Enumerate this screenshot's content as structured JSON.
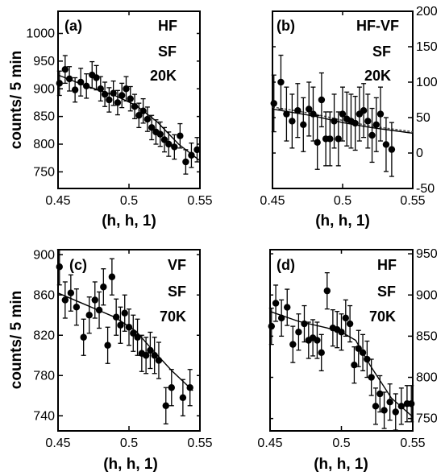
{
  "chart_data": [
    {
      "type": "scatter",
      "panel_label": "(a)",
      "annotations": [
        "HF",
        "SF",
        "20K"
      ],
      "xlabel": "(h, h, 1)",
      "ylabel": "counts/ 5 min",
      "y_axis_side": "left",
      "xlim": [
        0.45,
        0.55
      ],
      "ylim": [
        720,
        1040
      ],
      "xticks": [
        0.45,
        0.5,
        0.55
      ],
      "xtick_labels": [
        "0.45",
        "0.5",
        "0.55"
      ],
      "yticks": [
        750,
        800,
        850,
        900,
        950,
        1000
      ],
      "ytick_labels": [
        "750",
        "800",
        "850",
        "900",
        "950",
        "1000"
      ],
      "points": [
        {
          "x": 0.451,
          "y": 910,
          "err": 22
        },
        {
          "x": 0.455,
          "y": 935,
          "err": 25
        },
        {
          "x": 0.458,
          "y": 918,
          "err": 22
        },
        {
          "x": 0.462,
          "y": 898,
          "err": 22
        },
        {
          "x": 0.466,
          "y": 912,
          "err": 25
        },
        {
          "x": 0.47,
          "y": 905,
          "err": 22
        },
        {
          "x": 0.474,
          "y": 925,
          "err": 24
        },
        {
          "x": 0.477,
          "y": 920,
          "err": 22
        },
        {
          "x": 0.48,
          "y": 900,
          "err": 22
        },
        {
          "x": 0.483,
          "y": 890,
          "err": 22
        },
        {
          "x": 0.486,
          "y": 880,
          "err": 22
        },
        {
          "x": 0.489,
          "y": 892,
          "err": 22
        },
        {
          "x": 0.492,
          "y": 875,
          "err": 22
        },
        {
          "x": 0.495,
          "y": 888,
          "err": 22
        },
        {
          "x": 0.498,
          "y": 900,
          "err": 22
        },
        {
          "x": 0.501,
          "y": 882,
          "err": 22
        },
        {
          "x": 0.504,
          "y": 868,
          "err": 22
        },
        {
          "x": 0.507,
          "y": 852,
          "err": 22
        },
        {
          "x": 0.51,
          "y": 860,
          "err": 22
        },
        {
          "x": 0.513,
          "y": 845,
          "err": 22
        },
        {
          "x": 0.516,
          "y": 830,
          "err": 22
        },
        {
          "x": 0.519,
          "y": 822,
          "err": 22
        },
        {
          "x": 0.522,
          "y": 818,
          "err": 22
        },
        {
          "x": 0.525,
          "y": 808,
          "err": 22
        },
        {
          "x": 0.528,
          "y": 800,
          "err": 22
        },
        {
          "x": 0.532,
          "y": 795,
          "err": 22
        },
        {
          "x": 0.536,
          "y": 815,
          "err": 22
        },
        {
          "x": 0.54,
          "y": 768,
          "err": 22
        },
        {
          "x": 0.544,
          "y": 780,
          "err": 22
        },
        {
          "x": 0.548,
          "y": 790,
          "err": 22
        }
      ],
      "fit_lines": [
        {
          "style": "solid",
          "points": [
            [
              0.45,
              925
            ],
            [
              0.47,
              905
            ],
            [
              0.49,
              888
            ],
            [
              0.505,
              870
            ],
            [
              0.52,
              840
            ],
            [
              0.535,
              800
            ],
            [
              0.55,
              770
            ]
          ]
        }
      ]
    },
    {
      "type": "scatter",
      "panel_label": "(b)",
      "annotations": [
        "HF-VF",
        "SF",
        "20K"
      ],
      "xlabel": "(h, h, 1)",
      "ylabel": "",
      "y_axis_side": "right",
      "xlim": [
        0.45,
        0.55
      ],
      "ylim": [
        -50,
        200
      ],
      "xticks": [
        0.45,
        0.5,
        0.55
      ],
      "xtick_labels": [
        "0.45",
        "0.5",
        "0.55"
      ],
      "yticks": [
        -50,
        0,
        50,
        100,
        150,
        200
      ],
      "ytick_labels": [
        "-50",
        "0",
        "50",
        "100",
        "150",
        "200"
      ],
      "points": [
        {
          "x": 0.451,
          "y": 70,
          "err": 40
        },
        {
          "x": 0.456,
          "y": 100,
          "err": 38
        },
        {
          "x": 0.46,
          "y": 55,
          "err": 38
        },
        {
          "x": 0.464,
          "y": 45,
          "err": 38
        },
        {
          "x": 0.468,
          "y": 60,
          "err": 38
        },
        {
          "x": 0.472,
          "y": 40,
          "err": 38
        },
        {
          "x": 0.476,
          "y": 62,
          "err": 38
        },
        {
          "x": 0.479,
          "y": 55,
          "err": 38
        },
        {
          "x": 0.482,
          "y": 15,
          "err": 38
        },
        {
          "x": 0.485,
          "y": 75,
          "err": 38
        },
        {
          "x": 0.488,
          "y": 20,
          "err": 38
        },
        {
          "x": 0.491,
          "y": 20,
          "err": 38
        },
        {
          "x": 0.494,
          "y": 45,
          "err": 38
        },
        {
          "x": 0.497,
          "y": 20,
          "err": 38
        },
        {
          "x": 0.5,
          "y": 55,
          "err": 38
        },
        {
          "x": 0.503,
          "y": 48,
          "err": 38
        },
        {
          "x": 0.506,
          "y": 45,
          "err": 38
        },
        {
          "x": 0.509,
          "y": 42,
          "err": 38
        },
        {
          "x": 0.512,
          "y": 55,
          "err": 38
        },
        {
          "x": 0.515,
          "y": 60,
          "err": 38
        },
        {
          "x": 0.518,
          "y": 45,
          "err": 38
        },
        {
          "x": 0.521,
          "y": 25,
          "err": 38
        },
        {
          "x": 0.524,
          "y": 40,
          "err": 38
        },
        {
          "x": 0.527,
          "y": 55,
          "err": 38
        },
        {
          "x": 0.531,
          "y": 12,
          "err": 38
        },
        {
          "x": 0.535,
          "y": 5,
          "err": 38
        }
      ],
      "fit_lines": [
        {
          "style": "dashed",
          "points": [
            [
              0.45,
              65
            ],
            [
              0.48,
              55
            ],
            [
              0.5,
              46
            ],
            [
              0.52,
              38
            ],
            [
              0.55,
              30
            ]
          ]
        },
        {
          "style": "solid",
          "points": [
            [
              0.45,
              62
            ],
            [
              0.48,
              52
            ],
            [
              0.5,
              43
            ],
            [
              0.52,
              36
            ],
            [
              0.55,
              28
            ]
          ]
        }
      ]
    },
    {
      "type": "scatter",
      "panel_label": "(c)",
      "annotations": [
        "VF",
        "SF",
        "70K"
      ],
      "xlabel": "(h, h, 1)",
      "ylabel": "counts/ 5 min",
      "y_axis_side": "left",
      "xlim": [
        0.45,
        0.55
      ],
      "ylim": [
        725,
        905
      ],
      "xticks": [
        0.45,
        0.5,
        0.55
      ],
      "xtick_labels": [
        "0.45",
        "0.5",
        "0.55"
      ],
      "yticks": [
        740,
        780,
        820,
        860,
        900
      ],
      "ytick_labels": [
        "740",
        "780",
        "820",
        "860",
        "900"
      ],
      "points": [
        {
          "x": 0.451,
          "y": 888,
          "err": 18
        },
        {
          "x": 0.455,
          "y": 855,
          "err": 18
        },
        {
          "x": 0.459,
          "y": 862,
          "err": 18
        },
        {
          "x": 0.463,
          "y": 848,
          "err": 18
        },
        {
          "x": 0.468,
          "y": 818,
          "err": 18
        },
        {
          "x": 0.472,
          "y": 840,
          "err": 18
        },
        {
          "x": 0.476,
          "y": 855,
          "err": 18
        },
        {
          "x": 0.479,
          "y": 845,
          "err": 18
        },
        {
          "x": 0.482,
          "y": 868,
          "err": 18
        },
        {
          "x": 0.485,
          "y": 810,
          "err": 18
        },
        {
          "x": 0.488,
          "y": 878,
          "err": 18
        },
        {
          "x": 0.491,
          "y": 838,
          "err": 18
        },
        {
          "x": 0.494,
          "y": 830,
          "err": 18
        },
        {
          "x": 0.497,
          "y": 842,
          "err": 18
        },
        {
          "x": 0.5,
          "y": 828,
          "err": 18
        },
        {
          "x": 0.503,
          "y": 822,
          "err": 18
        },
        {
          "x": 0.506,
          "y": 818,
          "err": 18
        },
        {
          "x": 0.509,
          "y": 802,
          "err": 18
        },
        {
          "x": 0.512,
          "y": 800,
          "err": 18
        },
        {
          "x": 0.515,
          "y": 805,
          "err": 18
        },
        {
          "x": 0.518,
          "y": 800,
          "err": 18
        },
        {
          "x": 0.521,
          "y": 795,
          "err": 18
        },
        {
          "x": 0.526,
          "y": 750,
          "err": 18
        },
        {
          "x": 0.53,
          "y": 768,
          "err": 18
        },
        {
          "x": 0.538,
          "y": 758,
          "err": 18
        },
        {
          "x": 0.543,
          "y": 768,
          "err": 18
        }
      ],
      "fit_lines": [
        {
          "style": "solid",
          "points": [
            [
              0.45,
              862
            ],
            [
              0.47,
              850
            ],
            [
              0.49,
              838
            ],
            [
              0.505,
              824
            ],
            [
              0.515,
              808
            ],
            [
              0.53,
              785
            ],
            [
              0.545,
              765
            ]
          ]
        }
      ]
    },
    {
      "type": "scatter",
      "panel_label": "(d)",
      "annotations": [
        "HF",
        "SF",
        "70K"
      ],
      "xlabel": "(h, h, 1)",
      "ylabel": "",
      "y_axis_side": "right",
      "xlim": [
        0.45,
        0.55
      ],
      "ylim": [
        735,
        955
      ],
      "xticks": [
        0.45,
        0.5,
        0.55
      ],
      "xtick_labels": [
        "0.45",
        "0.5",
        "0.55"
      ],
      "yticks": [
        750,
        800,
        850,
        900,
        950
      ],
      "ytick_labels": [
        "750",
        "800",
        "850",
        "900",
        "950"
      ],
      "points": [
        {
          "x": 0.451,
          "y": 862,
          "err": 22
        },
        {
          "x": 0.454,
          "y": 890,
          "err": 22
        },
        {
          "x": 0.458,
          "y": 872,
          "err": 22
        },
        {
          "x": 0.462,
          "y": 885,
          "err": 22
        },
        {
          "x": 0.466,
          "y": 840,
          "err": 22
        },
        {
          "x": 0.47,
          "y": 855,
          "err": 22
        },
        {
          "x": 0.474,
          "y": 865,
          "err": 22
        },
        {
          "x": 0.477,
          "y": 845,
          "err": 22
        },
        {
          "x": 0.48,
          "y": 848,
          "err": 22
        },
        {
          "x": 0.483,
          "y": 845,
          "err": 22
        },
        {
          "x": 0.486,
          "y": 830,
          "err": 22
        },
        {
          "x": 0.49,
          "y": 905,
          "err": 22
        },
        {
          "x": 0.494,
          "y": 860,
          "err": 22
        },
        {
          "x": 0.497,
          "y": 858,
          "err": 22
        },
        {
          "x": 0.5,
          "y": 855,
          "err": 22
        },
        {
          "x": 0.503,
          "y": 872,
          "err": 22
        },
        {
          "x": 0.506,
          "y": 865,
          "err": 22
        },
        {
          "x": 0.509,
          "y": 815,
          "err": 22
        },
        {
          "x": 0.512,
          "y": 835,
          "err": 22
        },
        {
          "x": 0.515,
          "y": 830,
          "err": 22
        },
        {
          "x": 0.518,
          "y": 822,
          "err": 22
        },
        {
          "x": 0.521,
          "y": 800,
          "err": 22
        },
        {
          "x": 0.524,
          "y": 765,
          "err": 22
        },
        {
          "x": 0.527,
          "y": 780,
          "err": 22
        },
        {
          "x": 0.53,
          "y": 760,
          "err": 22
        },
        {
          "x": 0.534,
          "y": 770,
          "err": 22
        },
        {
          "x": 0.538,
          "y": 758,
          "err": 22
        },
        {
          "x": 0.542,
          "y": 765,
          "err": 22
        },
        {
          "x": 0.546,
          "y": 768,
          "err": 22
        },
        {
          "x": 0.549,
          "y": 768,
          "err": 22
        }
      ],
      "fit_lines": [
        {
          "style": "solid",
          "points": [
            [
              0.45,
              880
            ],
            [
              0.47,
              868
            ],
            [
              0.49,
              860
            ],
            [
              0.5,
              855
            ],
            [
              0.51,
              845
            ],
            [
              0.52,
              815
            ],
            [
              0.535,
              775
            ],
            [
              0.55,
              752
            ]
          ]
        }
      ]
    }
  ]
}
